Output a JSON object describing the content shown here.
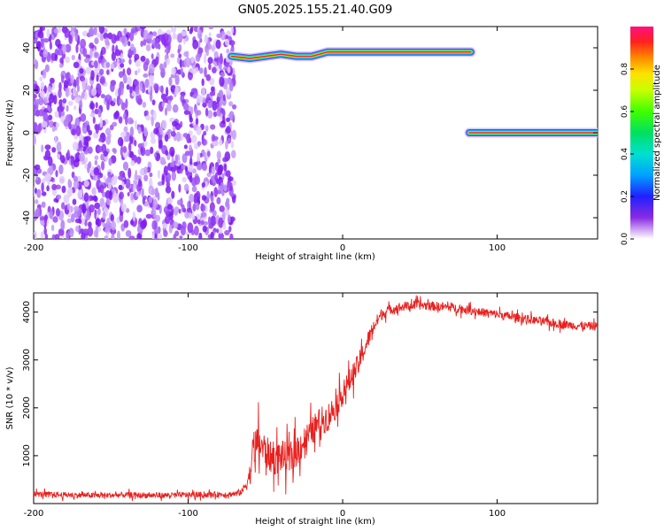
{
  "figure": {
    "title": "GN05.2025.155.21.40.G09"
  },
  "chart_data": [
    {
      "type": "heatmap",
      "xlabel": "Height of straight line (km)",
      "ylabel": "Frequency (Hz)",
      "xlim": [
        -200,
        165
      ],
      "ylim": [
        -50,
        50
      ],
      "xticks": [
        -200,
        -100,
        0,
        100
      ],
      "yticks": [
        -40,
        -20,
        0,
        20,
        40
      ],
      "colorbar": {
        "label": "Normalized spectral amplitude",
        "range": [
          0,
          1
        ],
        "ticks": [
          0.0,
          0.2,
          0.4,
          0.6,
          0.8
        ]
      },
      "noise_region": {
        "x": [
          -200,
          -70
        ],
        "y": [
          -50,
          50
        ]
      },
      "tones": [
        {
          "name": "",
          "x_range": [
            -72,
            83
          ],
          "frequency": [
            [
              -72,
              36
            ],
            [
              -60,
              35
            ],
            [
              -50,
              36
            ],
            [
              -40,
              37
            ],
            [
              -30,
              36
            ],
            [
              -20,
              36
            ],
            [
              -10,
              38
            ],
            [
              0,
              38
            ],
            [
              20,
              38
            ],
            [
              40,
              38
            ],
            [
              60,
              38
            ],
            [
              83,
              38
            ]
          ],
          "peak_amplitude": 0.95
        },
        {
          "name": "",
          "x_range": [
            82,
            165
          ],
          "frequency": [
            [
              82,
              0
            ],
            [
              165,
              0
            ]
          ],
          "peak_amplitude": 0.95
        }
      ]
    },
    {
      "type": "line",
      "xlabel": "Height of straight line (km)",
      "ylabel": "SNR (10 * v/v)",
      "xlim": [
        -200,
        165
      ],
      "ylim": [
        0,
        4400
      ],
      "xticks": [
        -200,
        -100,
        0,
        100
      ],
      "yticks": [
        1000,
        2000,
        3000,
        4000
      ],
      "color": "#e8201e",
      "series": [
        {
          "name": "",
          "x": [
            -200,
            -180,
            -160,
            -140,
            -120,
            -100,
            -80,
            -70,
            -65,
            -60,
            -58,
            -55,
            -50,
            -45,
            -40,
            -35,
            -30,
            -25,
            -20,
            -15,
            -10,
            -5,
            0,
            5,
            10,
            15,
            20,
            25,
            30,
            40,
            50,
            60,
            70,
            80,
            90,
            100,
            110,
            120,
            130,
            140,
            150,
            165
          ],
          "y": [
            200,
            180,
            170,
            180,
            170,
            180,
            190,
            200,
            250,
            600,
            1100,
            1300,
            1100,
            900,
            1000,
            900,
            1100,
            1300,
            1500,
            1700,
            1800,
            2000,
            2300,
            2600,
            2900,
            3300,
            3700,
            3950,
            4050,
            4120,
            4150,
            4120,
            4100,
            4050,
            4000,
            3950,
            3900,
            3850,
            3800,
            3750,
            3720,
            3700
          ],
          "noise_amplitude": [
            120,
            120,
            120,
            120,
            120,
            120,
            120,
            120,
            150,
            500,
            700,
            800,
            700,
            650,
            700,
            700,
            700,
            650,
            600,
            600,
            600,
            550,
            500,
            500,
            450,
            400,
            300,
            250,
            200,
            200,
            200,
            200,
            180,
            180,
            180,
            180,
            180,
            180,
            180,
            180,
            180,
            180
          ]
        }
      ]
    }
  ]
}
